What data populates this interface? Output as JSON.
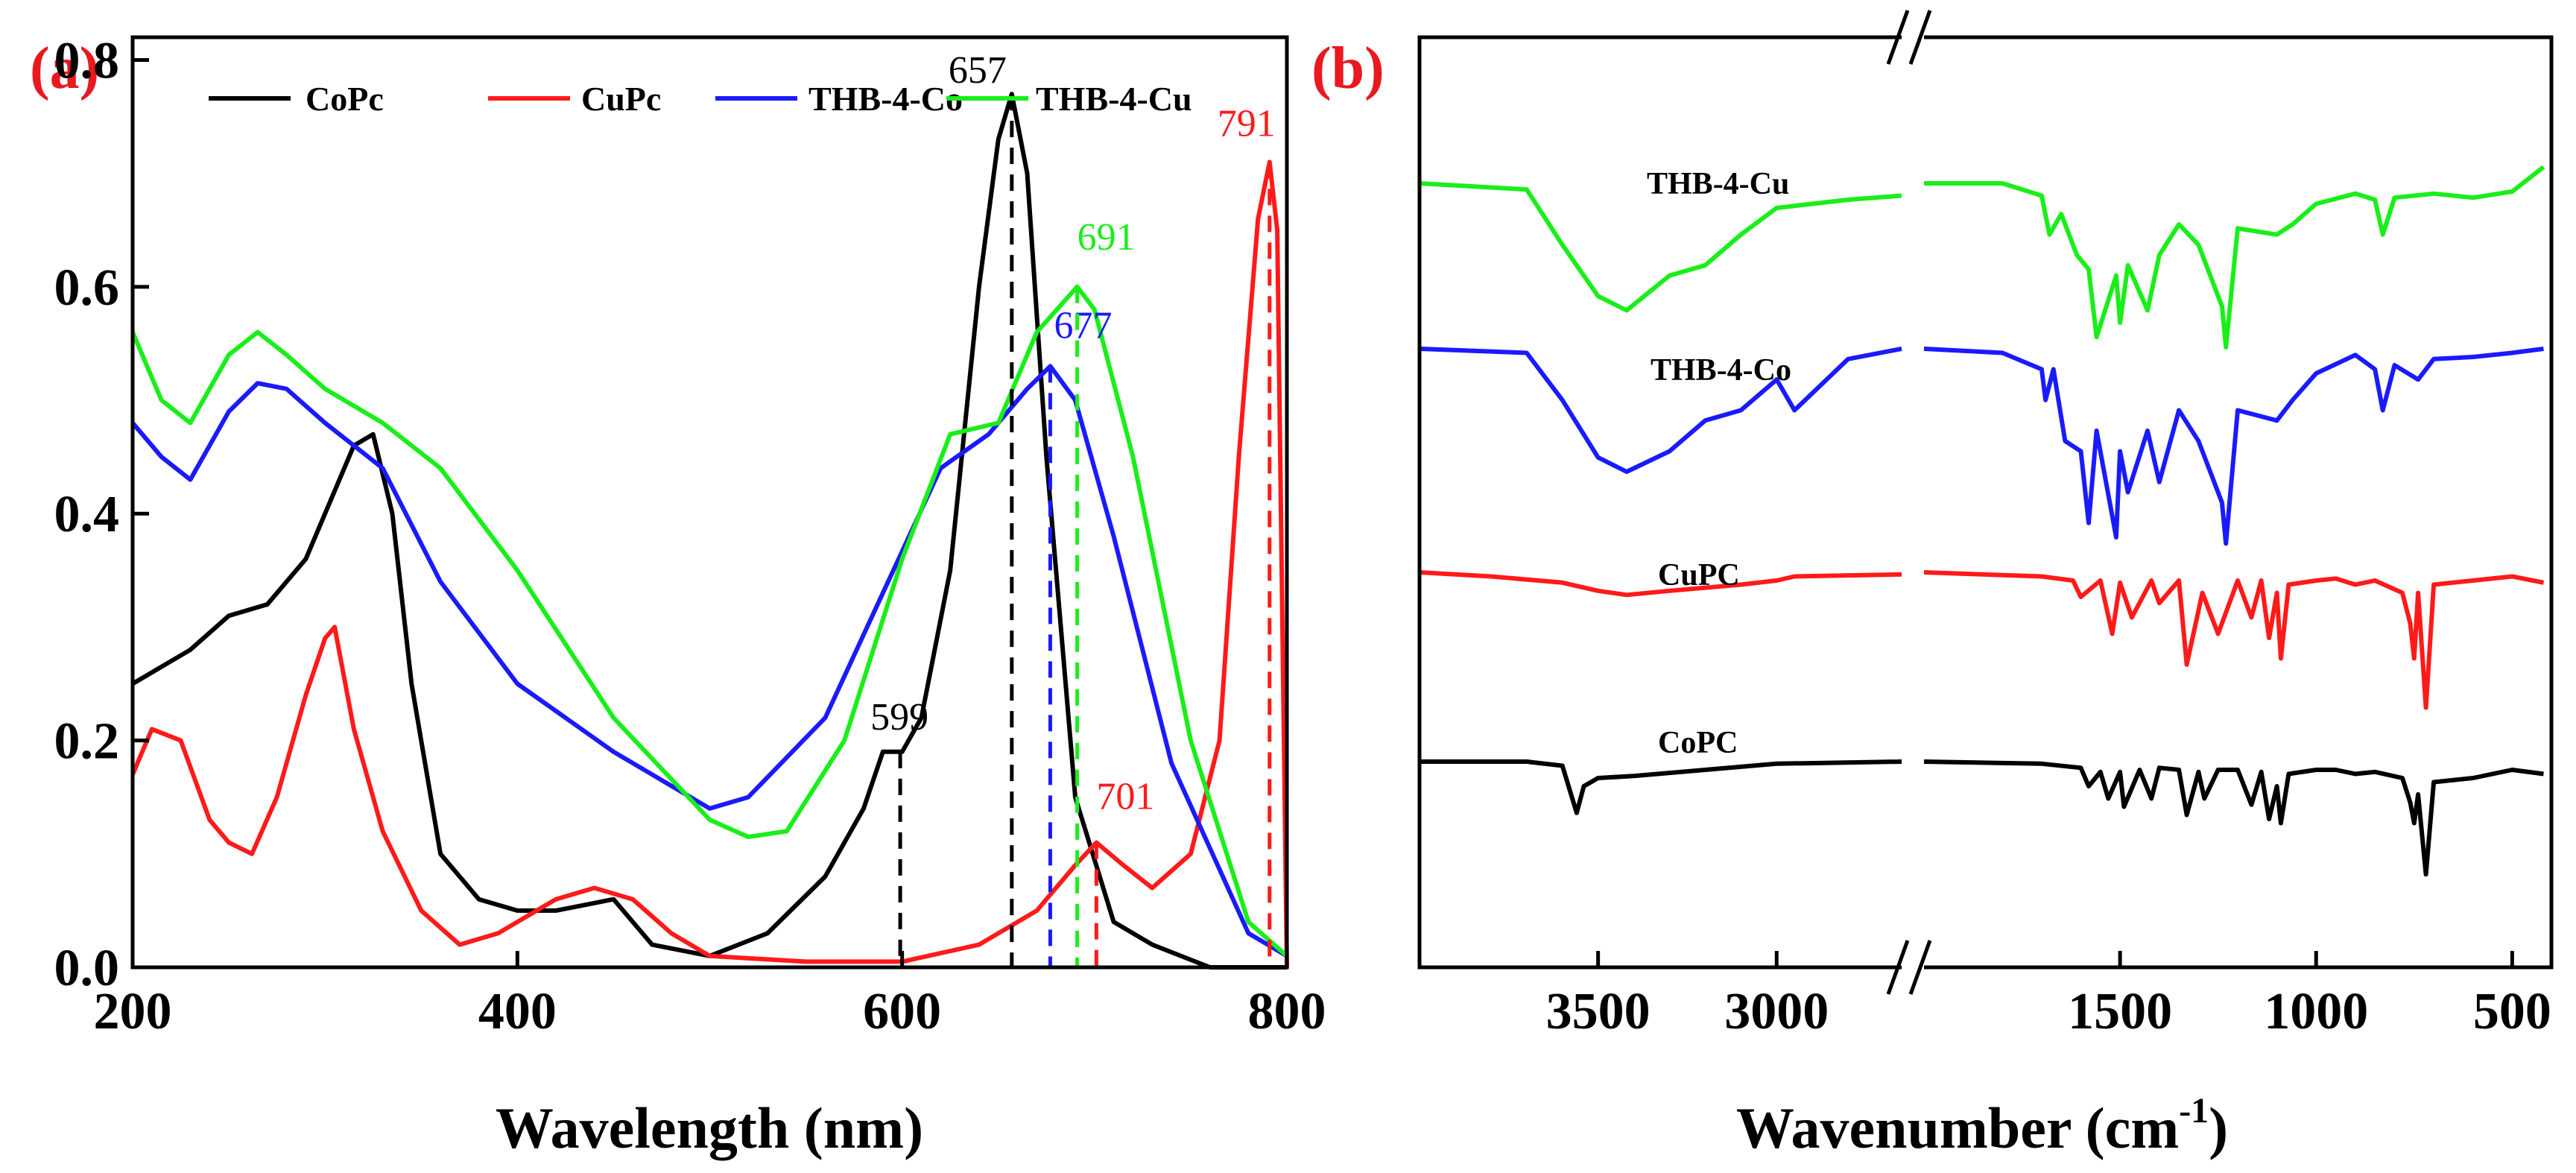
{
  "figure": {
    "panel_a_label": "(a)",
    "panel_b_label": "(b)",
    "label_color": "#e8191f"
  },
  "chart_data": [
    {
      "id": "a",
      "type": "line",
      "title": "",
      "xlabel": "Wavelength (nm)",
      "ylabel": "",
      "xlim": [
        200,
        800
      ],
      "ylim": [
        0.0,
        0.82
      ],
      "xticks": [
        200,
        400,
        600,
        800
      ],
      "yticks": [
        0.0,
        0.2,
        0.4,
        0.6,
        0.8
      ],
      "xtick_labels": [
        "200",
        "400",
        "600",
        "800"
      ],
      "ytick_labels": [
        "0.0",
        "0.2",
        "0.4",
        "0.6",
        "0.8"
      ],
      "grid": false,
      "legend_position": "top",
      "series": [
        {
          "name": "CoPc",
          "color": "#000000",
          "x": [
            200,
            230,
            250,
            270,
            290,
            300,
            315,
            325,
            335,
            345,
            360,
            380,
            400,
            420,
            450,
            470,
            500,
            530,
            560,
            580,
            590,
            600,
            610,
            625,
            640,
            650,
            657,
            665,
            675,
            690,
            710,
            730,
            760,
            800
          ],
          "y": [
            0.25,
            0.28,
            0.31,
            0.32,
            0.36,
            0.4,
            0.46,
            0.47,
            0.4,
            0.25,
            0.1,
            0.06,
            0.05,
            0.05,
            0.06,
            0.02,
            0.01,
            0.03,
            0.08,
            0.14,
            0.19,
            0.19,
            0.22,
            0.35,
            0.6,
            0.73,
            0.77,
            0.7,
            0.45,
            0.15,
            0.04,
            0.02,
            0.0,
            0.0
          ]
        },
        {
          "name": "CuPc",
          "color": "#ff1a1a",
          "x": [
            200,
            210,
            225,
            240,
            250,
            262,
            275,
            290,
            300,
            305,
            315,
            330,
            350,
            370,
            390,
            420,
            440,
            460,
            480,
            500,
            550,
            600,
            640,
            670,
            690,
            701,
            715,
            730,
            750,
            765,
            775,
            785,
            791,
            795,
            800
          ],
          "y": [
            0.17,
            0.21,
            0.2,
            0.13,
            0.11,
            0.1,
            0.15,
            0.24,
            0.29,
            0.3,
            0.21,
            0.12,
            0.05,
            0.02,
            0.03,
            0.06,
            0.07,
            0.06,
            0.03,
            0.01,
            0.005,
            0.005,
            0.02,
            0.05,
            0.09,
            0.11,
            0.09,
            0.07,
            0.1,
            0.2,
            0.45,
            0.66,
            0.71,
            0.65,
            0.0
          ]
        },
        {
          "name": "THB-4-Co",
          "color": "#1a1aff",
          "x": [
            200,
            215,
            230,
            250,
            265,
            280,
            300,
            330,
            360,
            400,
            450,
            500,
            520,
            560,
            590,
            620,
            645,
            665,
            677,
            690,
            710,
            740,
            780,
            800
          ],
          "y": [
            0.48,
            0.45,
            0.43,
            0.49,
            0.515,
            0.51,
            0.48,
            0.44,
            0.34,
            0.25,
            0.19,
            0.14,
            0.15,
            0.22,
            0.33,
            0.44,
            0.47,
            0.51,
            0.53,
            0.5,
            0.38,
            0.18,
            0.03,
            0.01
          ]
        },
        {
          "name": "THB-4-Cu",
          "color": "#1aee1a",
          "x": [
            200,
            215,
            230,
            250,
            265,
            280,
            300,
            330,
            360,
            400,
            450,
            500,
            520,
            540,
            570,
            600,
            625,
            650,
            670,
            691,
            700,
            720,
            750,
            780,
            800
          ],
          "y": [
            0.56,
            0.5,
            0.48,
            0.54,
            0.56,
            0.54,
            0.51,
            0.48,
            0.44,
            0.35,
            0.22,
            0.13,
            0.115,
            0.12,
            0.2,
            0.36,
            0.47,
            0.48,
            0.56,
            0.6,
            0.58,
            0.45,
            0.2,
            0.04,
            0.01
          ]
        }
      ],
      "peak_markers": [
        {
          "label": "599",
          "x": 599,
          "y_top": 0.19,
          "color": "#000000"
        },
        {
          "label": "657",
          "x": 657,
          "y_top": 0.77,
          "color": "#000000"
        },
        {
          "label": "677",
          "x": 677,
          "y_top": 0.53,
          "color": "#1a1aff"
        },
        {
          "label": "691",
          "x": 691,
          "y_top": 0.6,
          "color": "#1aee1a"
        },
        {
          "label": "701",
          "x": 701,
          "y_top": 0.11,
          "color": "#ff1a1a"
        },
        {
          "label": "791",
          "x": 791,
          "y_top": 0.71,
          "color": "#ff1a1a"
        }
      ]
    },
    {
      "id": "b",
      "type": "line",
      "title": "",
      "xlabel": "Wavenumber (cm",
      "xlabel_superscript": "-1",
      "xlabel_suffix": ")",
      "ylabel": "",
      "x_reversed": true,
      "broken_axis": {
        "left_segment": [
          4000,
          2650
        ],
        "right_segment": [
          2000,
          400
        ]
      },
      "xticks": [
        3500,
        3000,
        1500,
        1000,
        500
      ],
      "xtick_labels": [
        "3500",
        "3000",
        "1500",
        "1000",
        "500"
      ],
      "yticks": [],
      "grid": false,
      "series_labels_position": "above each trace",
      "series": [
        {
          "name": "CoPC",
          "color": "#000000",
          "offset": 0,
          "x": [
            4000,
            3700,
            3600,
            3560,
            3540,
            3500,
            3400,
            3200,
            3000,
            2650,
            2000,
            1700,
            1600,
            1580,
            1550,
            1530,
            1500,
            1490,
            1450,
            1420,
            1400,
            1350,
            1330,
            1300,
            1285,
            1250,
            1200,
            1165,
            1140,
            1120,
            1100,
            1090,
            1070,
            1000,
            950,
            900,
            850,
            780,
            760,
            750,
            740,
            720,
            700,
            600,
            500,
            420
          ],
          "y": [
            0,
            0,
            -0.02,
            -0.25,
            -0.12,
            -0.08,
            -0.07,
            -0.04,
            -0.01,
            0,
            0,
            -0.01,
            -0.03,
            -0.12,
            -0.05,
            -0.18,
            -0.05,
            -0.22,
            -0.04,
            -0.18,
            -0.03,
            -0.04,
            -0.26,
            -0.05,
            -0.18,
            -0.04,
            -0.04,
            -0.21,
            -0.05,
            -0.28,
            -0.12,
            -0.3,
            -0.06,
            -0.04,
            -0.04,
            -0.06,
            -0.05,
            -0.08,
            -0.2,
            -0.3,
            -0.16,
            -0.55,
            -0.1,
            -0.08,
            -0.04,
            -0.06
          ]
        },
        {
          "name": "CuPC",
          "color": "#ff1a1a",
          "offset": 0.5,
          "x": [
            4000,
            3800,
            3600,
            3500,
            3420,
            3300,
            3100,
            3000,
            2950,
            2650,
            2000,
            1700,
            1620,
            1600,
            1550,
            1520,
            1500,
            1470,
            1420,
            1400,
            1350,
            1330,
            1290,
            1250,
            1200,
            1165,
            1140,
            1120,
            1100,
            1090,
            1070,
            1000,
            950,
            900,
            850,
            780,
            760,
            750,
            740,
            720,
            700,
            600,
            500,
            420
          ],
          "y": [
            0,
            -0.02,
            -0.05,
            -0.09,
            -0.11,
            -0.09,
            -0.06,
            -0.04,
            -0.02,
            -0.01,
            0,
            -0.02,
            -0.04,
            -0.12,
            -0.04,
            -0.3,
            -0.05,
            -0.22,
            -0.04,
            -0.15,
            -0.04,
            -0.45,
            -0.1,
            -0.3,
            -0.04,
            -0.22,
            -0.04,
            -0.32,
            -0.1,
            -0.42,
            -0.06,
            -0.04,
            -0.03,
            -0.06,
            -0.04,
            -0.1,
            -0.25,
            -0.42,
            -0.1,
            -0.66,
            -0.06,
            -0.04,
            -0.02,
            -0.05
          ]
        },
        {
          "name": "THB-4-Co",
          "color": "#1a1aff",
          "offset": 1.5,
          "x": [
            4000,
            3700,
            3600,
            3500,
            3420,
            3300,
            3200,
            3100,
            3000,
            2950,
            2800,
            2650,
            2000,
            1800,
            1700,
            1690,
            1670,
            1640,
            1600,
            1580,
            1560,
            1510,
            1500,
            1480,
            1430,
            1400,
            1350,
            1300,
            1240,
            1230,
            1200,
            1100,
            1060,
            1000,
            900,
            850,
            830,
            800,
            740,
            700,
            600,
            500,
            420
          ],
          "y": [
            0,
            -0.02,
            -0.25,
            -0.53,
            -0.6,
            -0.5,
            -0.35,
            -0.3,
            -0.15,
            -0.3,
            -0.05,
            0,
            0,
            -0.02,
            -0.1,
            -0.25,
            -0.1,
            -0.45,
            -0.5,
            -0.85,
            -0.4,
            -0.92,
            -0.5,
            -0.7,
            -0.4,
            -0.65,
            -0.3,
            -0.45,
            -0.75,
            -0.95,
            -0.3,
            -0.35,
            -0.25,
            -0.12,
            -0.03,
            -0.1,
            -0.3,
            -0.08,
            -0.15,
            -0.05,
            -0.04,
            -0.02,
            0
          ]
        },
        {
          "name": "THB-4-Cu",
          "color": "#1aee1a",
          "offset": 2.3,
          "x": [
            4000,
            3700,
            3600,
            3500,
            3420,
            3300,
            3200,
            3100,
            3000,
            2800,
            2650,
            2000,
            1800,
            1700,
            1680,
            1650,
            1610,
            1580,
            1560,
            1510,
            1500,
            1480,
            1430,
            1400,
            1350,
            1300,
            1240,
            1230,
            1200,
            1100,
            1060,
            1000,
            900,
            850,
            830,
            800,
            700,
            600,
            500,
            420
          ],
          "y": [
            0,
            -0.03,
            -0.3,
            -0.55,
            -0.62,
            -0.45,
            -0.4,
            -0.25,
            -0.12,
            -0.08,
            -0.06,
            0,
            0,
            -0.06,
            -0.25,
            -0.15,
            -0.35,
            -0.42,
            -0.75,
            -0.45,
            -0.68,
            -0.4,
            -0.62,
            -0.35,
            -0.2,
            -0.3,
            -0.6,
            -0.8,
            -0.22,
            -0.25,
            -0.2,
            -0.1,
            -0.05,
            -0.08,
            -0.25,
            -0.07,
            -0.05,
            -0.07,
            -0.04,
            0.08
          ]
        }
      ]
    }
  ]
}
